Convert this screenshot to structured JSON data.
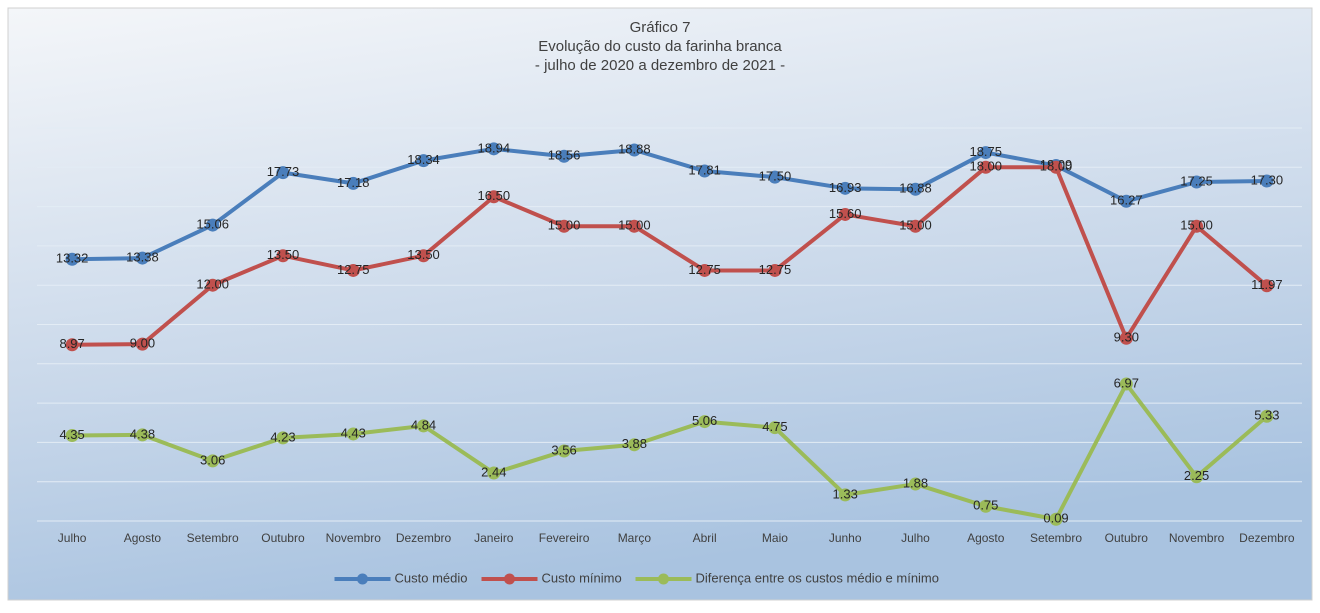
{
  "chart_data": {
    "type": "line",
    "title": "Gráfico 7",
    "subtitle": [
      "Evolução do custo da farinha branca",
      "- julho de 2020 a dezembro de 2021 -"
    ],
    "categories": [
      "Julho",
      "Agosto",
      "Setembro",
      "Outubro",
      "Novembro",
      "Dezembro",
      "Janeiro",
      "Fevereiro",
      "Março",
      "Abril",
      "Maio",
      "Junho",
      "Julho",
      "Agosto",
      "Setembro",
      "Outubro",
      "Novembro",
      "Dezembro"
    ],
    "series": [
      {
        "name": "Custo médio",
        "color": "#4a7ebb",
        "values": [
          13.32,
          13.38,
          15.06,
          17.73,
          17.18,
          18.34,
          18.94,
          18.56,
          18.88,
          17.81,
          17.5,
          16.93,
          16.88,
          18.75,
          18.09,
          16.27,
          17.25,
          17.3
        ],
        "value_labels": [
          "13.32",
          "13.38",
          "15.06",
          "17.73",
          "17.18",
          "18.34",
          "18.94",
          "18.56",
          "18.88",
          "17.81",
          "17.50",
          "16.93",
          "16.88",
          "18.75",
          "18.09",
          "16.27",
          "17.25",
          "17.30"
        ]
      },
      {
        "name": "Custo mínimo",
        "color": "#c0504d",
        "values": [
          8.97,
          9,
          12,
          13.5,
          12.75,
          13.5,
          16.5,
          15,
          15,
          12.75,
          12.75,
          15.6,
          15,
          18,
          18,
          9.3,
          15,
          11.97
        ],
        "value_labels": [
          "8.97",
          "9.00",
          "12.00",
          "13.50",
          "12.75",
          "13.50",
          "16.50",
          "15.00",
          "15.00",
          "12.75",
          "12.75",
          "15.60",
          "15.00",
          "18.00",
          "18.00",
          "9.30",
          "15.00",
          "11.97"
        ]
      },
      {
        "name": "Diferença entre os custos médio e mínimo",
        "color": "#9bbb59",
        "values": [
          4.35,
          4.38,
          3.06,
          4.23,
          4.43,
          4.84,
          2.44,
          3.56,
          3.88,
          5.06,
          4.75,
          1.33,
          1.88,
          0.75,
          0.09,
          6.97,
          2.25,
          5.33
        ],
        "value_labels": [
          "4.35",
          "4.38",
          "3.06",
          "4.23",
          "4.43",
          "4.84",
          "2.44",
          "3.56",
          "3.88",
          "5.06",
          "4.75",
          "1.33",
          "1.88",
          "0.75",
          "0.09",
          "6.97",
          "2.25",
          "5.33"
        ]
      }
    ],
    "ylim": [
      0,
      20
    ],
    "yticks": [
      0,
      2,
      4,
      6,
      8,
      10,
      12,
      14,
      16,
      18,
      20
    ],
    "grid": true,
    "legend": "bottom"
  }
}
